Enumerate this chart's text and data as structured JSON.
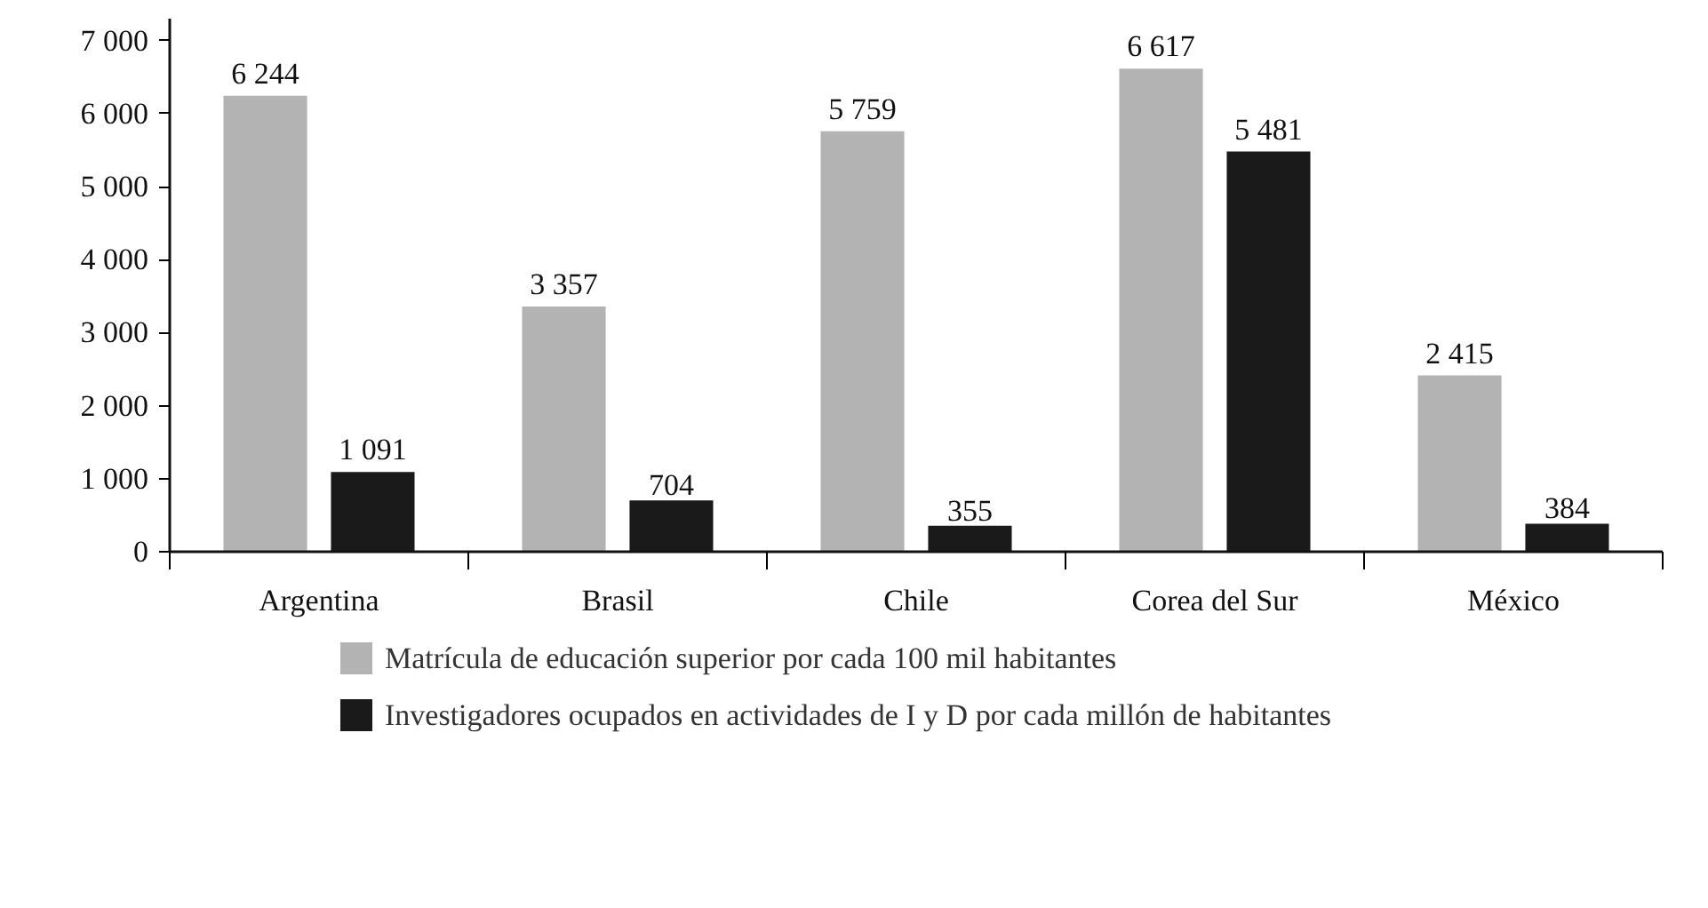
{
  "chart_data": {
    "type": "bar",
    "categories": [
      "Argentina",
      "Brasil",
      "Chile",
      "Corea del Sur",
      "México"
    ],
    "series": [
      {
        "name": "Matrícula de educación superior por cada 100 mil habitantes",
        "color": "#b3b3b3",
        "values": [
          6244,
          3357,
          5759,
          6617,
          2415
        ],
        "value_labels": [
          "6 244",
          "3 357",
          "5 759",
          "6 617",
          "2 415"
        ]
      },
      {
        "name": "Investigadores ocupados en actividades de I y D por cada millón de habitantes",
        "color": "#1a1a1a",
        "values": [
          1091,
          704,
          355,
          5481,
          384
        ],
        "value_labels": [
          "1 091",
          "704",
          "355",
          "5 481",
          "384"
        ]
      }
    ],
    "ylim": [
      0,
      7300
    ],
    "yticks": [
      {
        "value": 0,
        "label": "0"
      },
      {
        "value": 1000,
        "label": "1 000"
      },
      {
        "value": 2000,
        "label": "2 000"
      },
      {
        "value": 3000,
        "label": "3 000"
      },
      {
        "value": 4000,
        "label": "4 000"
      },
      {
        "value": 5000,
        "label": "5 000"
      },
      {
        "value": 6000,
        "label": "6 000"
      },
      {
        "value": 7000,
        "label": "7 000"
      }
    ],
    "grid": false,
    "legend": "bottom"
  }
}
